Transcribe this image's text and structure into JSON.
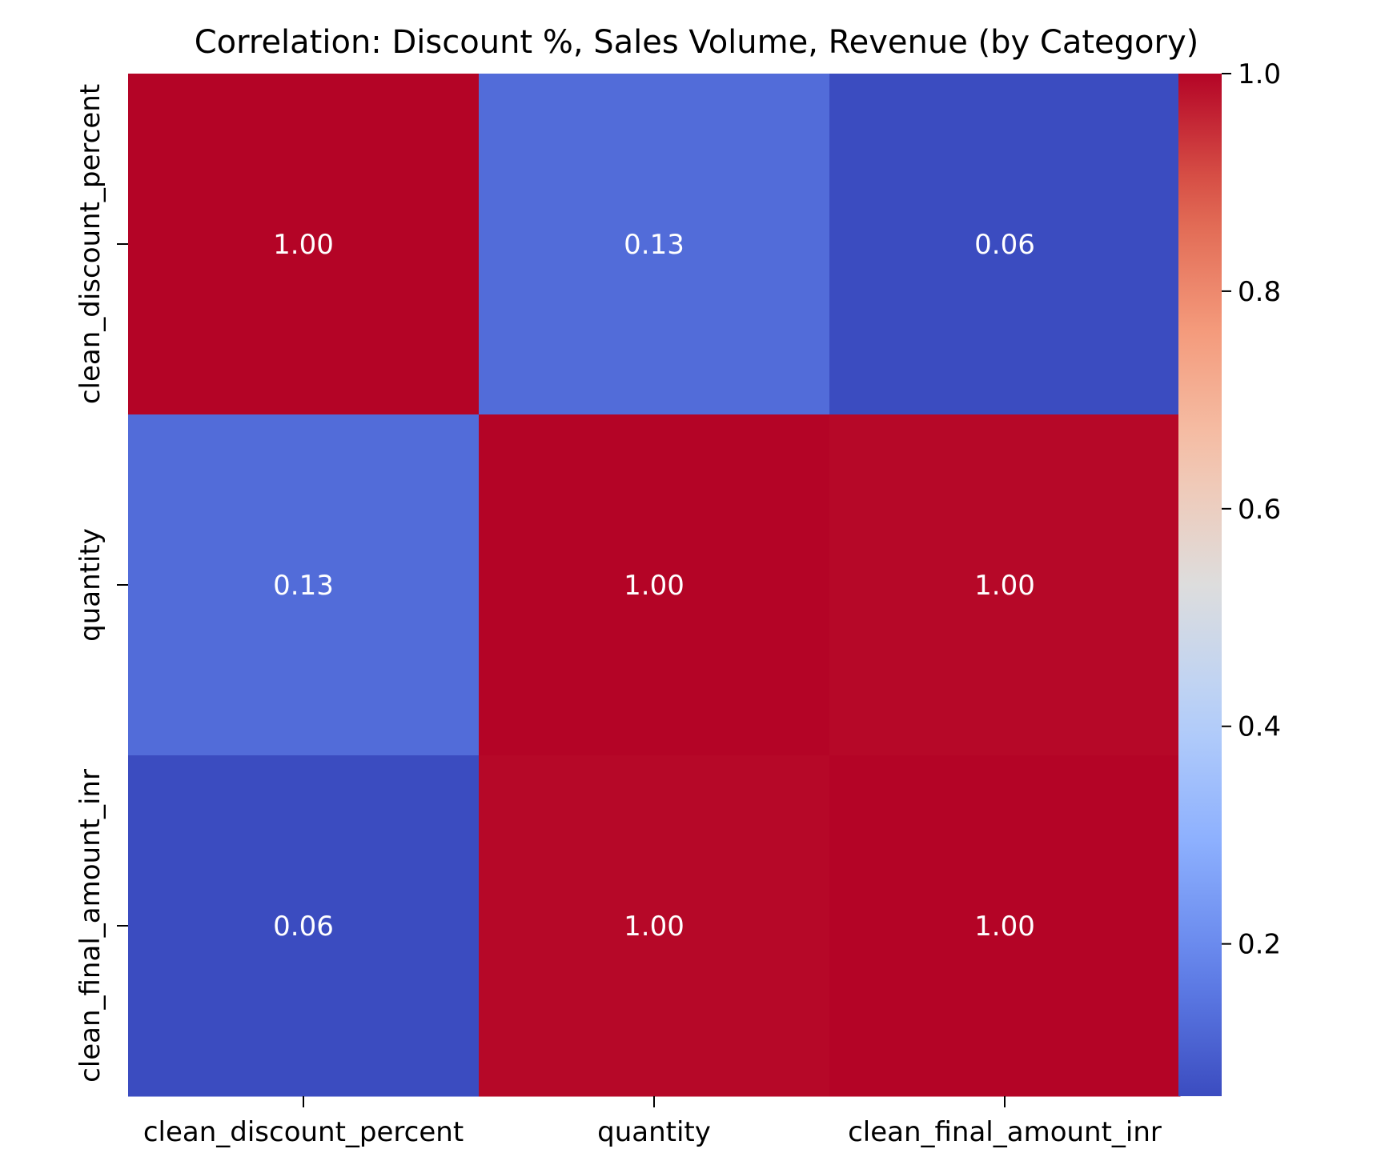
{
  "chart_data": {
    "type": "heatmap",
    "title": "Correlation: Discount %, Sales Volume, Revenue (by Category)",
    "xlabel": "",
    "ylabel": "",
    "x_categories": [
      "clean_discount_percent",
      "quantity",
      "clean_final_amount_inr"
    ],
    "y_categories": [
      "clean_discount_percent",
      "quantity",
      "clean_final_amount_inr"
    ],
    "values": [
      [
        1.0,
        0.13,
        0.06
      ],
      [
        0.13,
        1.0,
        0.995
      ],
      [
        0.06,
        0.995,
        1.0
      ]
    ],
    "cell_labels": [
      [
        "1.00",
        "0.13",
        "0.06"
      ],
      [
        "0.13",
        "1.00",
        "1.00"
      ],
      [
        "0.06",
        "1.00",
        "1.00"
      ]
    ],
    "colormap": "coolwarm",
    "colorbar": {
      "range": [
        0.06,
        1.0
      ],
      "ticks": [
        0.2,
        0.4,
        0.6,
        0.8,
        1.0
      ],
      "tick_labels": [
        "0.2",
        "0.4",
        "0.6",
        "0.8",
        "1.0"
      ]
    },
    "grid": false,
    "legend": "colorbar-right"
  }
}
